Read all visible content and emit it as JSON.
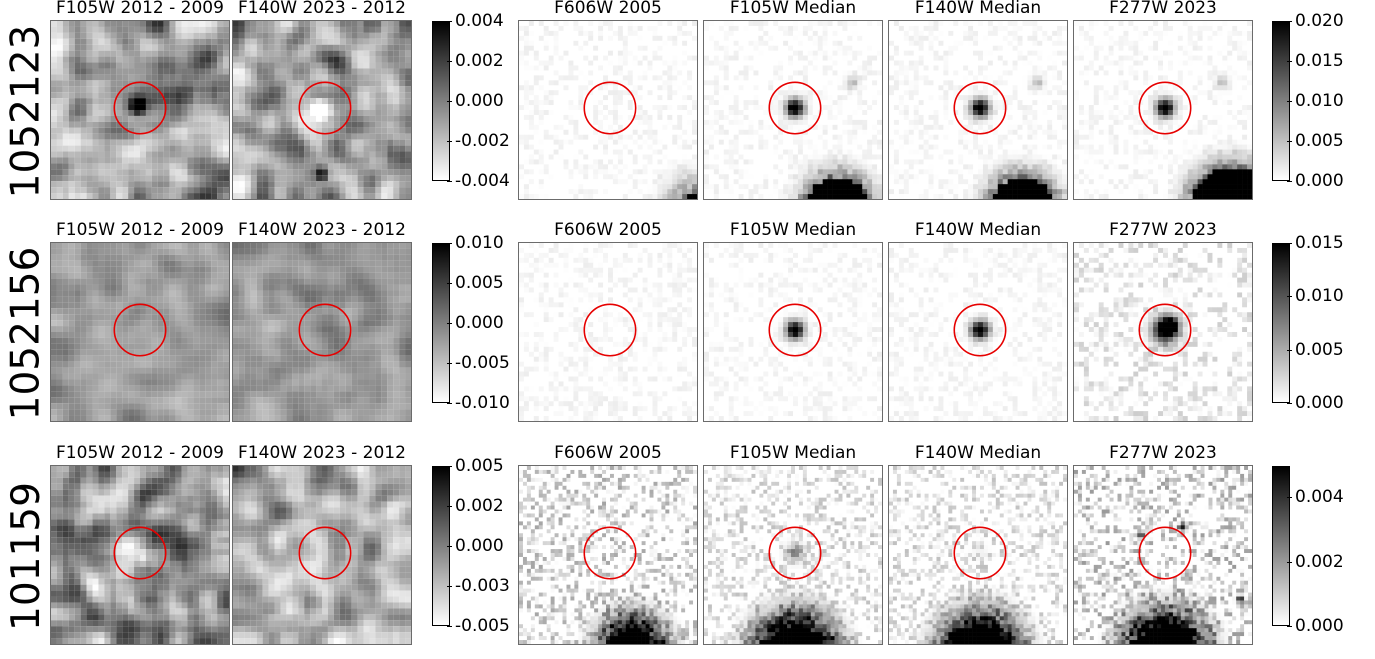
{
  "colors": {
    "circle": "#e60000",
    "frame": "#6b6b6b",
    "cmap": "greys"
  },
  "rows": [
    {
      "id": "1052123",
      "titles": [
        "F105W 2012 - 2009",
        "F140W 2023 - 2012",
        "F606W 2005",
        "F105W Median",
        "F140W Median",
        "F277W 2023"
      ],
      "diff_ticks": [
        "0.004",
        "0.002",
        "0.000",
        "-0.002",
        "-0.004"
      ],
      "img_ticks": [
        "0.020",
        "0.015",
        "0.010",
        "0.005",
        "0.000"
      ]
    },
    {
      "id": "1052156",
      "titles": [
        "F105W 2012 - 2009",
        "F140W 2023 - 2012",
        "F606W 2005",
        "F105W Median",
        "F140W Median",
        "F277W 2023"
      ],
      "diff_ticks": [
        "0.010",
        "0.005",
        "0.000",
        "-0.005",
        "-0.010"
      ],
      "img_ticks": [
        "0.015",
        "0.010",
        "0.005",
        "0.000"
      ]
    },
    {
      "id": "101159",
      "titles": [
        "F105W 2012 - 2009",
        "F140W 2023 - 2012",
        "F606W 2005",
        "F105W Median",
        "F140W Median",
        "F277W 2023"
      ],
      "diff_ticks": [
        "0.005",
        "0.002",
        "0.000",
        "-0.003",
        "-0.005"
      ],
      "img_ticks": [
        "0.004",
        "0.002",
        "0.000"
      ]
    }
  ]
}
